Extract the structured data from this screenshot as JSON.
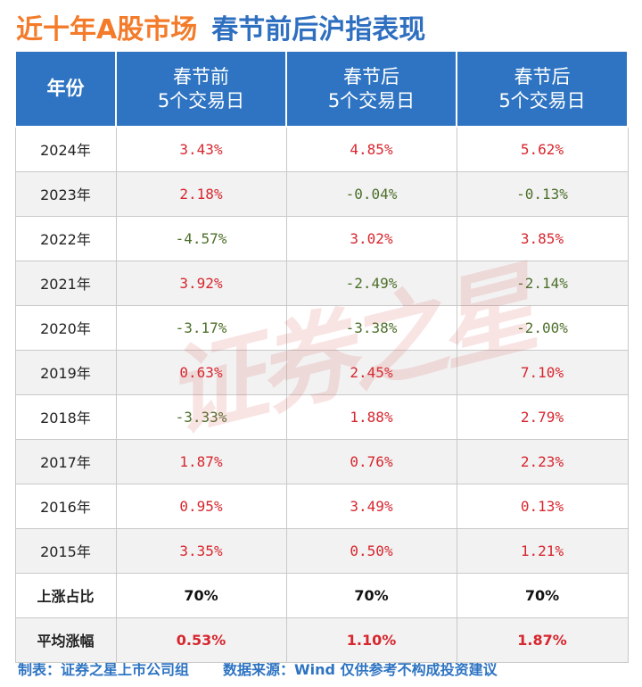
{
  "title": {
    "part1": "近十年A股市场",
    "part2": "春节前后沪指表现"
  },
  "watermark": "证券之星",
  "table": {
    "headers": [
      {
        "line1": "年份",
        "line2": ""
      },
      {
        "line1": "春节前",
        "line2": "5个交易日"
      },
      {
        "line1": "春节后",
        "line2": "5个交易日"
      },
      {
        "line1": "春节后",
        "line2": "5个交易日"
      }
    ],
    "rows": [
      {
        "year": "2024年",
        "c1": "3.43%",
        "c2": "4.85%",
        "c3": "5.62%"
      },
      {
        "year": "2023年",
        "c1": "2.18%",
        "c2": "-0.04%",
        "c3": "-0.13%"
      },
      {
        "year": "2022年",
        "c1": "-4.57%",
        "c2": "3.02%",
        "c3": "3.85%"
      },
      {
        "year": "2021年",
        "c1": "3.92%",
        "c2": "-2.49%",
        "c3": "-2.14%"
      },
      {
        "year": "2020年",
        "c1": "-3.17%",
        "c2": "-3.38%",
        "c3": "-2.00%"
      },
      {
        "year": "2019年",
        "c1": "0.63%",
        "c2": "2.45%",
        "c3": "7.10%"
      },
      {
        "year": "2018年",
        "c1": "-3.33%",
        "c2": "1.88%",
        "c3": "2.79%"
      },
      {
        "year": "2017年",
        "c1": "1.87%",
        "c2": "0.76%",
        "c3": "2.23%"
      },
      {
        "year": "2016年",
        "c1": "0.95%",
        "c2": "3.49%",
        "c3": "0.13%"
      },
      {
        "year": "2015年",
        "c1": "3.35%",
        "c2": "0.50%",
        "c3": "1.21%"
      }
    ],
    "up_ratio": {
      "label": "上涨占比",
      "c1": "70%",
      "c2": "70%",
      "c3": "70%"
    },
    "avg_change": {
      "label": "平均涨幅",
      "c1": "0.53%",
      "c2": "1.10%",
      "c3": "1.87%"
    }
  },
  "footer": {
    "author": "制表：证券之星上市公司组",
    "source": "数据来源：Wind 仅供参考不构成投资建议"
  },
  "colors": {
    "header_bg": "#2e74c2",
    "positive": "#d7262e",
    "negative": "#4d6f2a",
    "title_orange": "#f37b2a",
    "title_blue": "#2f6fc0"
  }
}
